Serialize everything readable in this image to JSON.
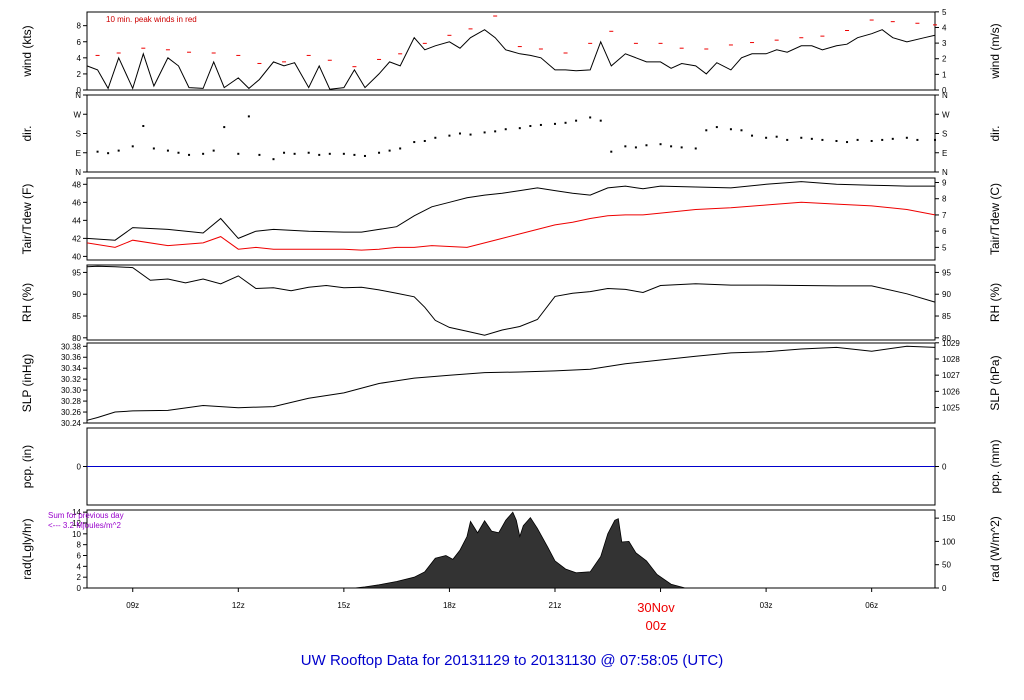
{
  "title": "UW Rooftop Data for 20131129  to  20131130 @ 07:58:05  (UTC)",
  "colors": {
    "title": "#0000cc",
    "red": "#ee0000",
    "blue": "#0000cc",
    "purple": "#9900cc",
    "line": "#000000"
  },
  "notes": {
    "wind": "10 min. peak winds in red",
    "rad_line1": "Sum for previous day",
    "rad_line2": "<--- 3.2 Mjoules/m^2"
  },
  "date_marker": {
    "line1": "30Nov",
    "line2": "00z"
  },
  "chart_data": [
    {
      "type": "line",
      "id": "wind",
      "ylabel_left": "wind (kts)",
      "ylabel_right": "wind (m/s)",
      "yticks_left": [
        "0",
        "2",
        "4",
        "6",
        "8"
      ],
      "yticks_right": [
        "0",
        "1",
        "2",
        "3",
        "4",
        "5"
      ],
      "ylim": [
        0,
        9.7
      ],
      "series": [
        {
          "name": "wind speed",
          "color": "#000000",
          "x": [
            7.7,
            8,
            8.3,
            8.6,
            9,
            9.3,
            9.6,
            10,
            10.3,
            10.6,
            11,
            11.3,
            11.6,
            12,
            12.3,
            12.6,
            13,
            13.3,
            13.6,
            14,
            14.3,
            14.6,
            15,
            15.3,
            15.6,
            16,
            16.3,
            16.6,
            17,
            17.3,
            17.6,
            18,
            18.3,
            18.6,
            19,
            19.3,
            19.6,
            20,
            20.3,
            20.6,
            21,
            21.3,
            21.6,
            22,
            22.3,
            22.6,
            23,
            23.3,
            23.6,
            24,
            24.3,
            24.6,
            25,
            25.3,
            25.6,
            26,
            26.3,
            26.6,
            27,
            27.3,
            27.6,
            28,
            28.3,
            28.6,
            29,
            29.3,
            29.6,
            30,
            30.3,
            30.6,
            31,
            31.5,
            31.8
          ],
          "y": [
            3,
            2.5,
            0.2,
            4,
            0.2,
            4.5,
            0.5,
            4,
            3,
            0.3,
            0.2,
            3.5,
            0.3,
            1.5,
            0.2,
            1.3,
            3.5,
            3,
            3.4,
            0.3,
            3,
            0.1,
            0.3,
            2.5,
            0.3,
            2,
            3.5,
            3,
            6.5,
            5,
            5.5,
            6,
            5.2,
            6.5,
            7.5,
            6.5,
            5,
            4.5,
            4.3,
            4,
            2.5,
            2.5,
            2.4,
            2.5,
            6,
            3,
            4.5,
            4,
            3.5,
            3.5,
            2.7,
            3.3,
            3,
            2,
            3.4,
            2.5,
            4,
            4.5,
            4.5,
            5,
            4.7,
            5.5,
            5.5,
            5,
            5.5,
            5.7,
            6.5,
            7,
            7.5,
            6.5,
            6,
            6.5,
            6.8
          ]
        },
        {
          "name": "10 min. peak winds",
          "color": "#ee0000",
          "x": [
            8,
            8.6,
            9.3,
            10,
            10.6,
            11.3,
            12,
            12.6,
            13.3,
            14,
            14.6,
            15.3,
            16,
            16.6,
            17.3,
            18,
            18.6,
            19.3,
            20,
            20.6,
            21.3,
            22,
            22.6,
            23.3,
            24,
            24.6,
            25.3,
            26,
            26.6,
            27.3,
            28,
            28.6,
            29.3,
            30,
            30.6,
            31.3,
            31.8
          ],
          "y": [
            4.3,
            4.6,
            5.2,
            5,
            4.7,
            4.6,
            4.3,
            3.3,
            3.5,
            4.3,
            3.7,
            2.9,
            3.8,
            4.5,
            5.8,
            6.8,
            7.6,
            9.2,
            5.4,
            5.1,
            4.6,
            5.8,
            7.3,
            5.8,
            5.8,
            5.2,
            5.1,
            5.6,
            5.9,
            6.2,
            6.5,
            6.7,
            7.4,
            8.7,
            8.5,
            8.3,
            8.1
          ]
        }
      ]
    },
    {
      "type": "scatter",
      "id": "dir",
      "ylabel_left": "dir.",
      "ylabel_right": "dir.",
      "yticks_left": [
        "N",
        "E",
        "S",
        "W",
        "N"
      ],
      "yticks_right": [
        "N",
        "E",
        "S",
        "W",
        "N"
      ],
      "ylim": [
        0,
        360
      ],
      "series": [
        {
          "name": "wind direction",
          "color": "#000000",
          "x": [
            8,
            8.3,
            8.6,
            9,
            9.3,
            9.6,
            10,
            10.3,
            10.6,
            11,
            11.3,
            11.6,
            12,
            12.3,
            12.6,
            13,
            13.3,
            13.6,
            14,
            14.3,
            14.6,
            15,
            15.3,
            15.6,
            16,
            16.3,
            16.6,
            17,
            17.3,
            17.6,
            18,
            18.3,
            18.6,
            19,
            19.3,
            19.6,
            20,
            20.3,
            20.6,
            21,
            21.3,
            21.6,
            22,
            22.3,
            22.6,
            23,
            23.3,
            23.6,
            24,
            24.3,
            24.6,
            25,
            25.3,
            25.6,
            26,
            26.3,
            26.6,
            27,
            27.3,
            27.6,
            28,
            28.3,
            28.6,
            29,
            29.3,
            29.6,
            30,
            30.3,
            30.6,
            31,
            31.3,
            31.8
          ],
          "y": [
            95,
            88,
            100,
            120,
            215,
            110,
            100,
            90,
            80,
            85,
            100,
            210,
            85,
            260,
            80,
            60,
            90,
            85,
            90,
            80,
            85,
            85,
            80,
            75,
            90,
            100,
            110,
            140,
            145,
            160,
            170,
            180,
            175,
            185,
            190,
            200,
            205,
            215,
            220,
            225,
            230,
            240,
            255,
            240,
            95,
            120,
            115,
            125,
            130,
            120,
            115,
            110,
            195,
            210,
            200,
            195,
            170,
            160,
            165,
            150,
            160,
            155,
            150,
            145,
            140,
            150,
            145,
            150,
            155,
            160,
            150,
            150
          ]
        }
      ]
    },
    {
      "type": "line",
      "id": "temp",
      "ylabel_left": "Tair/Tdew (F)",
      "ylabel_right": "Tair/Tdew (C)",
      "yticks_left": [
        "40",
        "42",
        "44",
        "46",
        "48"
      ],
      "yticks_right": [
        "5",
        "6",
        "7",
        "8",
        "9"
      ],
      "ylim": [
        39.6,
        48.7
      ],
      "series": [
        {
          "name": "Tair",
          "color": "#000000",
          "x": [
            7.7,
            8.5,
            9,
            10,
            11,
            11.5,
            12,
            12.5,
            13,
            14,
            15,
            15.5,
            16,
            16.5,
            17,
            17.5,
            18,
            18.5,
            19,
            19.5,
            20,
            20.5,
            21,
            21.5,
            22,
            22.5,
            23,
            23.5,
            24,
            25,
            26,
            27,
            28,
            29,
            30,
            31,
            31.8
          ],
          "y": [
            42,
            41.8,
            43.2,
            43,
            42.6,
            44.2,
            42,
            42.8,
            43,
            42.8,
            42.7,
            42.7,
            43,
            43.3,
            44.5,
            45.5,
            46,
            46.5,
            46.8,
            47,
            47.3,
            47.6,
            47.3,
            47,
            46.8,
            47.6,
            47.8,
            47.5,
            47.8,
            47.7,
            47.6,
            48,
            48.3,
            48,
            47.9,
            47.8,
            47.8
          ]
        },
        {
          "name": "Tdew",
          "color": "#ee0000",
          "x": [
            7.7,
            8.5,
            9,
            10,
            11,
            11.5,
            12,
            12.5,
            13,
            14,
            15,
            15.5,
            16,
            16.5,
            17,
            17.5,
            18,
            18.5,
            19,
            19.5,
            20,
            20.5,
            21,
            21.5,
            22,
            22.5,
            23,
            23.5,
            24,
            25,
            26,
            27,
            28,
            29,
            30,
            31,
            31.8
          ],
          "y": [
            41.5,
            41,
            41.8,
            41.2,
            41.5,
            42.2,
            40.8,
            41,
            40.8,
            40.8,
            40.8,
            40.7,
            40.8,
            41,
            41,
            41.2,
            41.1,
            41,
            41.5,
            42,
            42.5,
            43,
            43.5,
            43.8,
            44.2,
            44.5,
            44.6,
            44.6,
            44.8,
            45.2,
            45.4,
            45.7,
            46,
            45.8,
            45.6,
            45.2,
            44.6
          ]
        }
      ]
    },
    {
      "type": "line",
      "id": "rh",
      "ylabel_left": "RH (%)",
      "ylabel_right": "RH (%)",
      "yticks_left": [
        "80",
        "85",
        "90",
        "95"
      ],
      "yticks_right": [
        "80",
        "85",
        "90",
        "95"
      ],
      "ylim": [
        79.5,
        96.7
      ],
      "series": [
        {
          "name": "RH",
          "color": "#000000",
          "x": [
            7.7,
            8,
            8.5,
            9,
            9.5,
            10,
            10.5,
            11,
            11.5,
            12,
            12.5,
            13,
            13.5,
            14,
            14.5,
            15,
            15.5,
            16,
            16.5,
            17,
            17.3,
            17.6,
            18,
            18.5,
            19,
            19.5,
            20,
            20.5,
            21,
            21.5,
            22,
            22.5,
            23,
            23.5,
            24,
            25,
            26,
            27,
            28,
            29,
            30,
            31,
            31.8
          ],
          "y": [
            96.3,
            96.4,
            96.3,
            96.1,
            93.2,
            93.5,
            92.6,
            93.5,
            92.4,
            94.2,
            91.3,
            91.5,
            90.8,
            91.6,
            92,
            91.5,
            91.6,
            91,
            90.2,
            89.4,
            87,
            84,
            82.4,
            81.5,
            80.6,
            81.8,
            82.6,
            84.2,
            89.5,
            90.2,
            90.6,
            91.3,
            91.1,
            90.4,
            92,
            92.4,
            92.1,
            92.1,
            92,
            91.9,
            91.9,
            90.1,
            88.2
          ]
        }
      ]
    },
    {
      "type": "line",
      "id": "slp",
      "ylabel_left": "SLP (inHg)",
      "ylabel_right": "SLP (hPa)",
      "yticks_left": [
        "30.24",
        "30.26",
        "30.28",
        "30.30",
        "30.32",
        "30.34",
        "30.36",
        "30.38"
      ],
      "yticks_right": [
        "1025",
        "1026",
        "1027",
        "1028",
        "1029"
      ],
      "ylim": [
        30.24,
        30.386
      ],
      "series": [
        {
          "name": "SLP",
          "color": "#000000",
          "x": [
            7.7,
            8,
            8.5,
            9,
            10,
            11,
            12,
            13,
            14,
            15,
            16,
            17,
            18,
            19,
            20,
            21,
            22,
            23,
            24,
            25,
            26,
            27,
            28,
            29,
            30,
            31,
            31.8
          ],
          "y": [
            30.245,
            30.25,
            30.26,
            30.262,
            30.263,
            30.272,
            30.268,
            30.27,
            30.285,
            30.295,
            30.312,
            30.322,
            30.327,
            30.332,
            30.333,
            30.335,
            30.338,
            30.348,
            30.355,
            30.362,
            30.368,
            30.37,
            30.375,
            30.378,
            30.371,
            30.38,
            30.378
          ]
        }
      ]
    },
    {
      "type": "line",
      "id": "pcp",
      "ylabel_left": "pcp. (in)",
      "ylabel_right": "pcp. (mm)",
      "yticks_left": [
        "0"
      ],
      "yticks_right": [
        "0"
      ],
      "ylim": [
        -1,
        1
      ],
      "series": [
        {
          "name": "precipitation",
          "color": "#0000cc",
          "x": [
            7.7,
            31.8
          ],
          "y": [
            0,
            0
          ]
        }
      ]
    },
    {
      "type": "area",
      "id": "rad",
      "ylabel_left": "rad(Lgly/hr)",
      "ylabel_right": "rad (W/m^2)",
      "yticks_left": [
        "0",
        "2",
        "4",
        "6",
        "8",
        "10",
        "12",
        "14"
      ],
      "yticks_right": [
        "0",
        "50",
        "100",
        "150"
      ],
      "ylim": [
        0,
        14.4
      ],
      "series": [
        {
          "name": "radiation",
          "color": "#000000",
          "x": [
            7.7,
            15.3,
            15.6,
            16,
            16.5,
            17,
            17.3,
            17.6,
            17.9,
            18.1,
            18.3,
            18.5,
            18.6,
            18.8,
            19,
            19.2,
            19.4,
            19.6,
            19.8,
            19.9,
            20,
            20.1,
            20.3,
            20.5,
            20.8,
            21,
            21.3,
            21.6,
            22,
            22.3,
            22.5,
            22.7,
            22.8,
            22.9,
            23.1,
            23.3,
            23.6,
            23.9,
            24.3,
            24.7,
            31.8
          ],
          "y": [
            0,
            0,
            0.2,
            0.6,
            1.2,
            2,
            3,
            5.5,
            6,
            5.3,
            7,
            9.5,
            12.3,
            10.2,
            12.4,
            10.5,
            10.2,
            12.5,
            14,
            12.5,
            9.5,
            11.5,
            13,
            11,
            7.5,
            5,
            3.5,
            2.8,
            3,
            5.8,
            10,
            12.5,
            12.8,
            8.5,
            8.6,
            6.5,
            5,
            2.5,
            0.7,
            0,
            0
          ]
        }
      ]
    }
  ],
  "xaxis": {
    "ticks": [
      "09z",
      "12z",
      "15z",
      "18z",
      "21z",
      "00z",
      "03z",
      "06z"
    ],
    "tick_hours": [
      9,
      12,
      15,
      18,
      21,
      24,
      27,
      30
    ],
    "range": [
      7.7,
      31.8
    ]
  }
}
